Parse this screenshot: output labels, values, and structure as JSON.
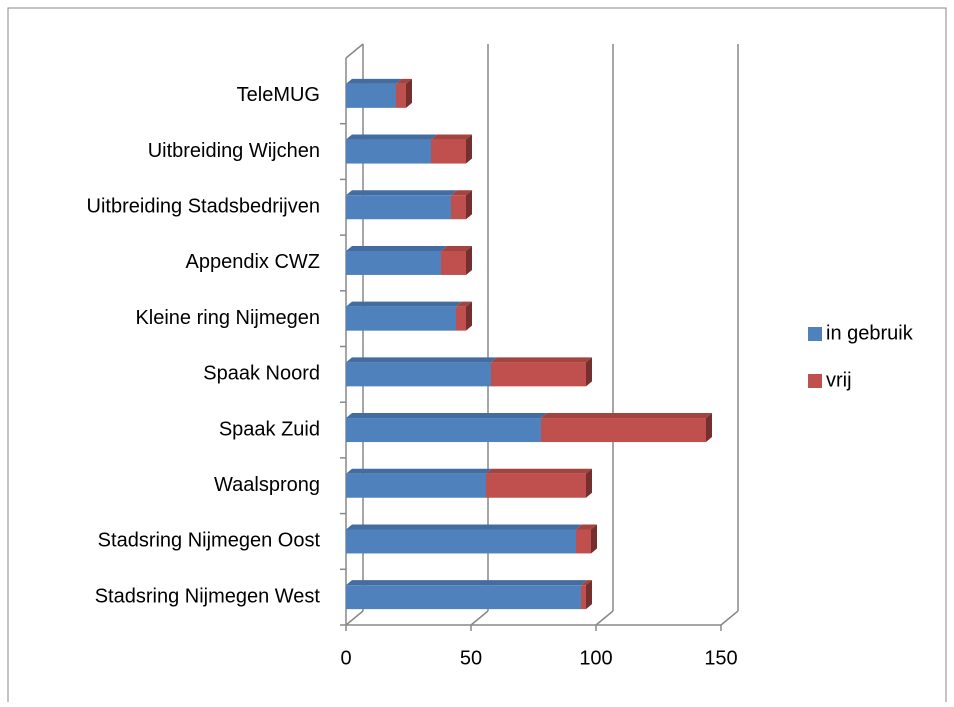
{
  "chart_data": {
    "type": "bar",
    "orientation": "horizontal",
    "stacked": true,
    "three_d": true,
    "categories": [
      "Stadsring Nijmegen West",
      "Stadsring Nijmegen Oost",
      "Waalsprong",
      "Spaak Zuid",
      "Spaak Noord",
      "Kleine ring Nijmegen",
      "Appendix CWZ",
      "Uitbreiding Stadsbedrijven",
      "Uitbreiding Wijchen",
      "TeleMUG"
    ],
    "series": [
      {
        "name": "in gebruik",
        "color": "#4f81bd",
        "values": [
          94,
          92,
          56,
          78,
          58,
          44,
          38,
          42,
          34,
          20
        ]
      },
      {
        "name": "vrij",
        "color": "#c0504d",
        "values": [
          2,
          6,
          40,
          66,
          38,
          4,
          10,
          6,
          14,
          4
        ]
      }
    ],
    "xlim": [
      0,
      150
    ],
    "xticks": [
      0,
      50,
      100,
      150
    ],
    "grid": true,
    "legend": "right"
  }
}
